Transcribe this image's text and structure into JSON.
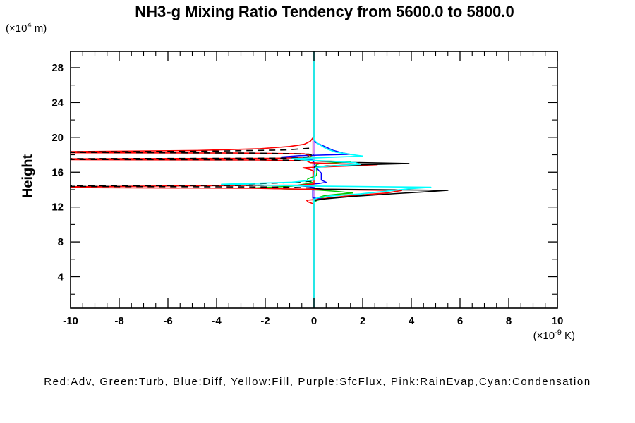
{
  "title": "NH3-g Mixing Ratio Tendency from 5600.0 to 5800.0",
  "axes": {
    "y": {
      "label": "Height",
      "unit_prefix": "(×10",
      "unit_sup": "4",
      "unit_suffix": " m)",
      "lim": [
        0.4,
        29.86
      ],
      "major_ticks": [
        4,
        8,
        12,
        16,
        20,
        24,
        28
      ],
      "tick_labels": [
        "4",
        "8",
        "12",
        "16",
        "20",
        "24",
        "28"
      ],
      "minor_step": 2
    },
    "x": {
      "unit_prefix": "(×10",
      "unit_sup": "-9",
      "unit_suffix": " K)",
      "lim": [
        -10,
        10
      ],
      "major_ticks": [
        -10,
        -8,
        -6,
        -4,
        -2,
        0,
        2,
        4,
        6,
        8,
        10
      ],
      "tick_labels": [
        "-10",
        "-8",
        "-6",
        "-4",
        "-2",
        "0",
        "2",
        "4",
        "6",
        "8",
        "10"
      ],
      "minor_step": 0.5
    }
  },
  "legend": {
    "text": "Red:Adv, Green:Turb, Blue:Diff, Yellow:Fill, Purple:SfcFlux, Pink:RainEvap,Cyan:Condensation"
  },
  "chart_data": {
    "type": "line",
    "title": "NH3-g Mixing Ratio Tendency from 5600.0 to 5800.0",
    "xlabel": "(x10^-9 K)",
    "ylabel": "Height (x10^4 m)",
    "xlim": [
      -10,
      10
    ],
    "ylim": [
      0.4,
      29.86
    ],
    "grid": false,
    "zero_line_x": 0,
    "note": "vertical profiles: x = tendency value, y = height; lines reaching x=-10 are clipped at the left axis",
    "series": [
      {
        "name": "Fill",
        "color": "#ffff00",
        "width": 1,
        "paths": [
          {
            "dash": false,
            "pts": [
              [
                0,
                29.86
              ],
              [
                0,
                0.4
              ]
            ]
          }
        ]
      },
      {
        "name": "SfcFlux",
        "color": "#a020f0",
        "width": 1,
        "paths": [
          {
            "dash": false,
            "pts": [
              [
                0,
                29.86
              ],
              [
                0,
                0.4
              ]
            ]
          }
        ]
      },
      {
        "name": "RainEvap",
        "color": "#ff9e9e",
        "width": 1.4,
        "paths": [
          {
            "dash": false,
            "pts": [
              [
                0,
                29.86
              ],
              [
                0,
                19.9
              ],
              [
                -0.05,
                19.6
              ],
              [
                -0.05,
                12.7
              ],
              [
                0,
                12.4
              ],
              [
                0,
                0.4
              ]
            ]
          }
        ]
      },
      {
        "name": "Turb",
        "color": "#00c800",
        "width": 1.5,
        "paths": [
          {
            "dash": false,
            "pts": [
              [
                0,
                18.0
              ],
              [
                -0.2,
                17.75
              ],
              [
                -0.45,
                17.55
              ],
              [
                -0.3,
                17.4
              ],
              [
                0.3,
                17.3
              ],
              [
                1.5,
                17.22
              ],
              [
                0.9,
                17.1
              ],
              [
                0.25,
                17.0
              ],
              [
                0.1,
                16.85
              ],
              [
                0.12,
                16.0
              ],
              [
                0.1,
                15.6
              ],
              [
                -0.25,
                15.25
              ],
              [
                -0.28,
                15.0
              ],
              [
                -0.05,
                14.8
              ],
              [
                -0.9,
                14.4
              ],
              [
                -2.4,
                14.2
              ],
              [
                -1.2,
                14.08
              ],
              [
                0.2,
                13.95
              ],
              [
                0.9,
                13.8
              ],
              [
                1.6,
                13.62
              ],
              [
                1.0,
                13.48
              ],
              [
                0.45,
                13.32
              ],
              [
                0.2,
                13.12
              ],
              [
                0.45,
                12.98
              ],
              [
                0.15,
                12.78
              ],
              [
                0,
                12.6
              ]
            ]
          }
        ]
      },
      {
        "name": "Diff",
        "color": "#0000ff",
        "width": 1.5,
        "paths": [
          {
            "dash": false,
            "pts": [
              [
                0,
                19.5
              ],
              [
                0.15,
                19.3
              ],
              [
                0.4,
                19.0
              ],
              [
                0.8,
                18.5
              ],
              [
                1.2,
                18.2
              ],
              [
                1.5,
                18.05
              ],
              [
                0.5,
                17.98
              ],
              [
                -0.6,
                17.9
              ],
              [
                -1.35,
                17.75
              ],
              [
                -0.5,
                17.6
              ],
              [
                -0.05,
                17.4
              ],
              [
                0.1,
                16.5
              ],
              [
                0.3,
                15.9
              ],
              [
                0.3,
                15.1
              ],
              [
                0.5,
                14.85
              ],
              [
                0.2,
                14.7
              ],
              [
                -0.5,
                14.55
              ],
              [
                -0.7,
                14.45
              ],
              [
                -0.2,
                14.35
              ],
              [
                0.05,
                14.2
              ],
              [
                -0.05,
                13.9
              ],
              [
                -0.05,
                13.05
              ],
              [
                0.35,
                12.95
              ],
              [
                0.1,
                12.8
              ],
              [
                0,
                12.7
              ]
            ]
          }
        ]
      },
      {
        "name": "Adv",
        "color": "#ff0000",
        "width": 1.6,
        "paths": [
          {
            "dash": false,
            "pts": [
              [
                0,
                29.8
              ],
              [
                0,
                20.1
              ],
              [
                -0.07,
                19.85
              ],
              [
                -0.15,
                19.55
              ],
              [
                -0.4,
                19.2
              ],
              [
                -1.0,
                18.95
              ],
              [
                -2.2,
                18.7
              ],
              [
                -4.8,
                18.5
              ],
              [
                -10,
                18.36
              ],
              [
                -10,
                18.24
              ],
              [
                -3.2,
                18.2
              ],
              [
                -0.4,
                18.12
              ],
              [
                -0.15,
                17.92
              ],
              [
                -0.15,
                17.68
              ],
              [
                -1.8,
                17.6
              ],
              [
                -10,
                17.54
              ],
              [
                -10,
                17.44
              ],
              [
                -2.2,
                17.4
              ],
              [
                -0.3,
                17.3
              ],
              [
                -0.15,
                17.1
              ],
              [
                0.6,
                17.0
              ],
              [
                2.6,
                16.86
              ],
              [
                1.4,
                16.72
              ],
              [
                0.3,
                16.6
              ],
              [
                -0.45,
                16.5
              ],
              [
                -0.15,
                16.3
              ],
              [
                0,
                16.1
              ],
              [
                0,
                14.65
              ],
              [
                -0.6,
                14.52
              ],
              [
                -10,
                14.34
              ],
              [
                -10,
                14.23
              ],
              [
                -2.5,
                14.16
              ],
              [
                0.2,
                14.02
              ],
              [
                3.6,
                13.9
              ],
              [
                3.0,
                13.62
              ],
              [
                1.5,
                13.3
              ],
              [
                0.6,
                13.05
              ],
              [
                0.3,
                12.92
              ],
              [
                -0.3,
                12.78
              ],
              [
                -0.25,
                12.6
              ],
              [
                -0.1,
                12.45
              ],
              [
                0,
                12.3
              ],
              [
                0,
                0.4
              ]
            ]
          }
        ]
      },
      {
        "name": "black",
        "color": "#000000",
        "width": 1.6,
        "paths": [
          {
            "dash": true,
            "pts": [
              [
                -0.2,
                18.75
              ],
              [
                -1.2,
                18.55
              ],
              [
                -4.0,
                18.42
              ],
              [
                -10,
                18.33
              ],
              [
                -10,
                18.27
              ],
              [
                -2.5,
                18.2
              ],
              [
                -0.2,
                18.08
              ],
              [
                -0.05,
                17.9
              ],
              [
                -0.5,
                17.62
              ],
              [
                -10,
                17.55
              ],
              [
                -10,
                17.47
              ],
              [
                -1.8,
                17.42
              ],
              [
                -0.1,
                17.32
              ]
            ]
          },
          {
            "dash": false,
            "pts": [
              [
                -0.1,
                17.32
              ],
              [
                1.5,
                17.12
              ],
              [
                3.9,
                17.0
              ],
              [
                2.2,
                16.88
              ],
              [
                0.5,
                16.72
              ],
              [
                0,
                16.58
              ]
            ]
          },
          {
            "dash": true,
            "pts": [
              [
                -0.1,
                15.0
              ],
              [
                -0.6,
                14.85
              ],
              [
                -2.2,
                14.7
              ],
              [
                -3.8,
                14.6
              ],
              [
                -2.0,
                14.5
              ],
              [
                -10,
                14.44
              ],
              [
                -10,
                14.38
              ],
              [
                -1.2,
                14.3
              ],
              [
                -0.1,
                14.18
              ]
            ]
          },
          {
            "dash": false,
            "pts": [
              [
                -0.1,
                14.18
              ],
              [
                0.4,
                14.05
              ],
              [
                5.5,
                13.92
              ],
              [
                4.6,
                13.75
              ],
              [
                3.4,
                13.55
              ],
              [
                1.5,
                13.2
              ],
              [
                0.3,
                12.9
              ],
              [
                0,
                12.75
              ]
            ]
          }
        ]
      },
      {
        "name": "Condensation",
        "color": "#00ffff",
        "width": 1.7,
        "paths": [
          {
            "dash": false,
            "pts": [
              [
                0,
                29.86
              ],
              [
                0,
                19.7
              ],
              [
                0.15,
                19.3
              ],
              [
                0.5,
                18.7
              ],
              [
                0.9,
                18.3
              ],
              [
                1.6,
                18.0
              ],
              [
                2.0,
                17.85
              ],
              [
                0.7,
                17.72
              ],
              [
                -0.9,
                17.55
              ],
              [
                -0.35,
                17.4
              ],
              [
                0.5,
                17.28
              ],
              [
                1.7,
                17.1
              ],
              [
                1.9,
                16.9
              ],
              [
                0.7,
                16.72
              ],
              [
                0.05,
                16.55
              ],
              [
                0,
                15.1
              ],
              [
                -0.9,
                14.85
              ],
              [
                -3.8,
                14.62
              ],
              [
                -1.8,
                14.5
              ],
              [
                0.1,
                14.4
              ],
              [
                2.5,
                14.34
              ],
              [
                4.8,
                14.27
              ],
              [
                3.9,
                14.1
              ],
              [
                1.9,
                13.5
              ],
              [
                0.8,
                13.3
              ],
              [
                0.2,
                13.1
              ],
              [
                0,
                12.9
              ],
              [
                0,
                0.4
              ]
            ]
          }
        ]
      }
    ]
  }
}
